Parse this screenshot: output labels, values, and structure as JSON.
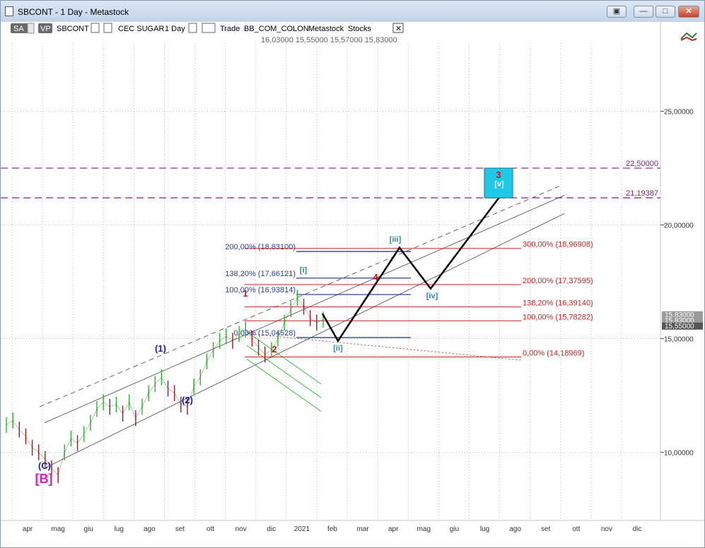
{
  "window": {
    "title": "SBCONT - 1 Day - Metastock",
    "buttons": {
      "restore": "▣",
      "minimize": "—",
      "maximize": "□",
      "close": "✕"
    }
  },
  "toolbar": {
    "sa": "SA",
    "vp": "VP",
    "symbol": "SBCONT",
    "instrument": "CEC SUGAR",
    "period": "1 Day",
    "trade": "Trade",
    "source": "BB_COM_COLON",
    "provider": "Metastock",
    "market": "Stocks",
    "ohlc": "16,03000   15,55000   15,57000   15,83000",
    "close": "✕"
  },
  "chart_data": {
    "type": "line",
    "title": "",
    "xlabel": "",
    "ylabel": "",
    "ylim": [
      7,
      28
    ],
    "ticks_y": [
      10,
      15,
      20,
      25
    ],
    "ticks_y_labels": [
      "10,00000",
      "15,00000",
      "20,00000",
      "25,00000"
    ],
    "months": [
      "apr",
      "mag",
      "giu",
      "lug",
      "ago",
      "set",
      "ott",
      "nov",
      "dic",
      "2021",
      "feb",
      "mar",
      "apr",
      "mag",
      "giu",
      "lug",
      "ago",
      "set",
      "ott",
      "nov",
      "dic"
    ],
    "grid": true,
    "price_tags": [
      "15,83000",
      "15,83000",
      "15,55000"
    ],
    "series": [
      {
        "values": [
          11.2,
          11.4,
          11.0,
          10.7,
          10.2,
          10.0,
          9.7,
          9.3,
          9.0,
          10.0,
          10.6,
          10.4,
          10.8,
          11.3,
          11.9,
          12.2,
          12.0,
          12.1,
          11.7,
          12.2,
          11.5,
          12.0,
          12.6,
          13.0,
          13.3,
          12.8,
          12.6,
          12.1,
          12.0,
          12.9,
          13.3,
          14.0,
          14.5,
          14.9,
          15.1,
          14.9,
          15.2,
          15.4,
          15.0,
          14.6,
          14.3,
          14.5,
          15.0,
          15.7,
          16.3,
          16.8,
          16.4,
          15.9,
          15.7,
          15.83
        ]
      }
    ],
    "horizontal_lines": [
      {
        "value": 22.5,
        "label": "22,50000",
        "color": "#8b1a8b"
      },
      {
        "value": 21.19387,
        "label": "21,19387",
        "color": "#8b1a8b"
      }
    ],
    "fib_left": [
      {
        "label": "200,00% (18,83100)",
        "value": 18.831
      },
      {
        "label": "138,20% (17,66121)",
        "value": 17.66121
      },
      {
        "label": "100,00% (16,93814)",
        "value": 16.93814
      },
      {
        "label": "0,00% (15,04528)",
        "value": 15.04528
      }
    ],
    "fib_right": [
      {
        "label": "300,00% (18,96908)",
        "value": 18.96908
      },
      {
        "label": "200,00% (17,37595)",
        "value": 17.37595
      },
      {
        "label": "138,20% (16,39140)",
        "value": 16.3914
      },
      {
        "label": "100,00% (15,78282)",
        "value": 15.78282
      },
      {
        "label": "0,00% (14,18969)",
        "value": 14.18969
      }
    ],
    "projection": [
      {
        "label": "",
        "value": 16.1
      },
      {
        "label": "[ii]",
        "value": 14.9
      },
      {
        "label": "[iii]",
        "value": 19.0
      },
      {
        "label": "[iv]",
        "value": 17.2
      },
      {
        "label": "[v]",
        "value": 21.3
      }
    ],
    "wave_labels": [
      {
        "text": "(C)",
        "color": "#1a1aa6"
      },
      {
        "text": "[B]",
        "color": "#e01bc4"
      },
      {
        "text": "(1)",
        "color": "#1a1aa6"
      },
      {
        "text": "(2)",
        "color": "#1a1aa6"
      },
      {
        "text": "1",
        "color": "#d01010"
      },
      {
        "text": "2",
        "color": "#d01010"
      },
      {
        "text": "[i]",
        "color": "#2a8aa0"
      },
      {
        "text": "4",
        "color": "#d01010"
      },
      {
        "text": "3",
        "color": "#d01010"
      }
    ],
    "target_box_color": "#1ec8e6"
  }
}
